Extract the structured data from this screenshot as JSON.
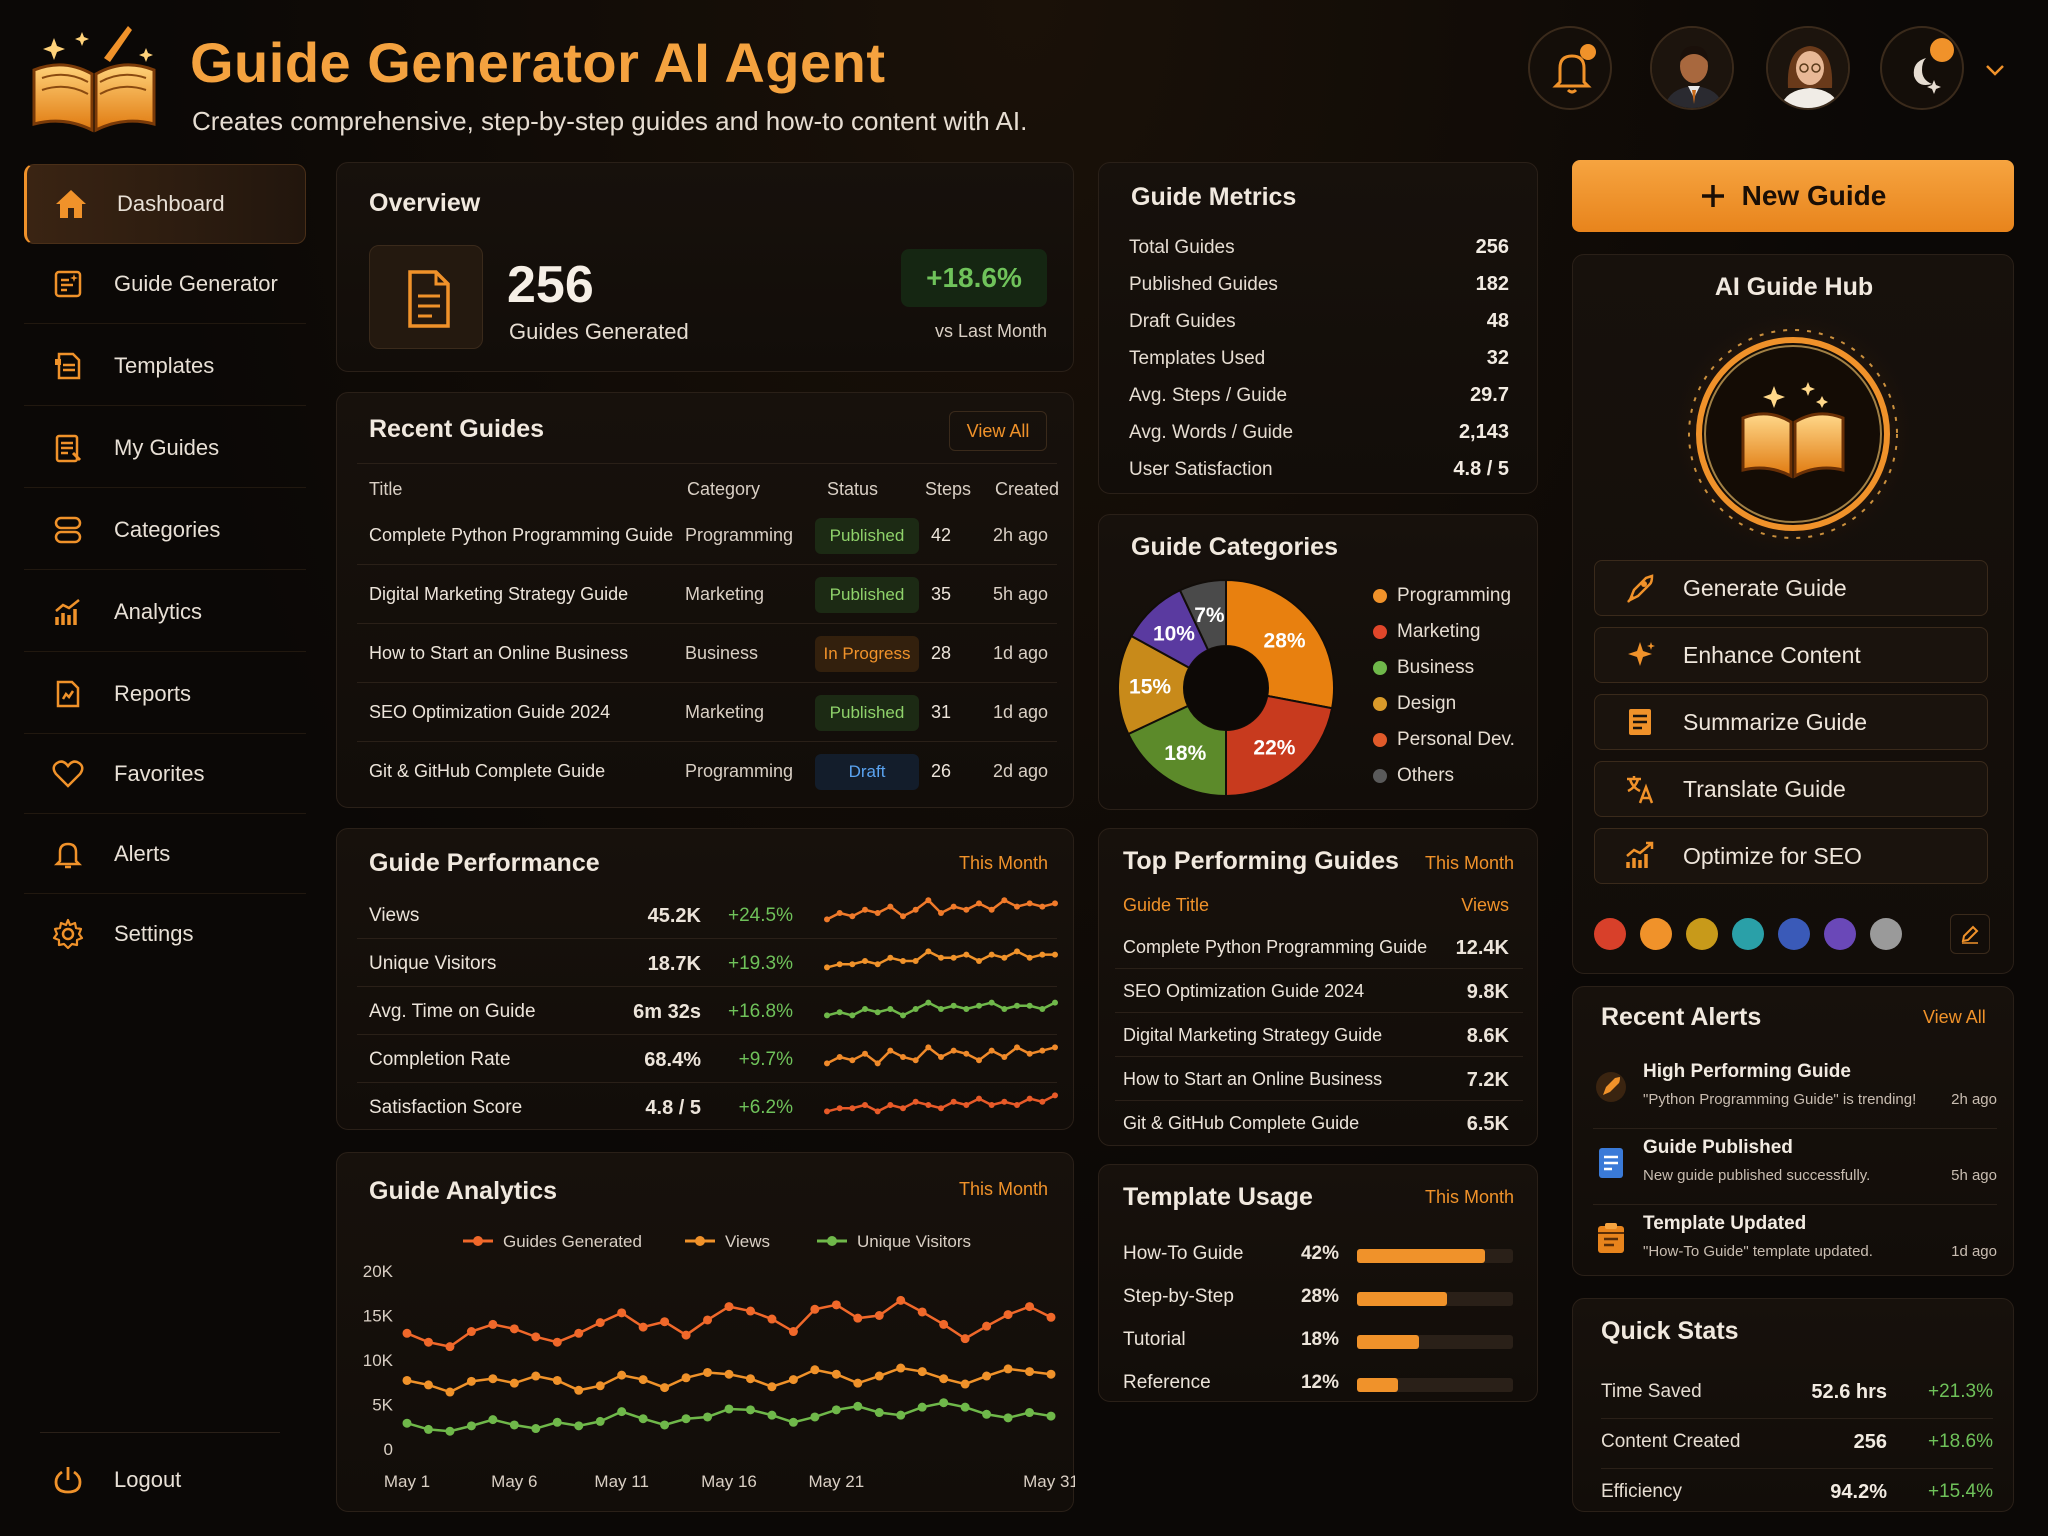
{
  "header": {
    "title": "Guide Generator AI Agent",
    "subtitle": "Creates comprehensive, step-by-step guides and how-to content with AI."
  },
  "sidebar": {
    "items": [
      {
        "label": "Dashboard",
        "icon": "home-icon",
        "active": true
      },
      {
        "label": "Guide Generator",
        "icon": "guide-generator-icon"
      },
      {
        "label": "Templates",
        "icon": "templates-icon"
      },
      {
        "label": "My Guides",
        "icon": "my-guides-icon"
      },
      {
        "label": "Categories",
        "icon": "categories-icon"
      },
      {
        "label": "Analytics",
        "icon": "analytics-icon"
      },
      {
        "label": "Reports",
        "icon": "reports-icon"
      },
      {
        "label": "Favorites",
        "icon": "heart-icon"
      },
      {
        "label": "Alerts",
        "icon": "bell-icon"
      },
      {
        "label": "Settings",
        "icon": "gear-icon"
      }
    ],
    "logout": "Logout"
  },
  "overview": {
    "title": "Overview",
    "value": "256",
    "label": "Guides Generated",
    "change": "+18.6%",
    "change_label": "vs Last Month"
  },
  "recent": {
    "title": "Recent Guides",
    "view_all": "View All",
    "headers": [
      "Title",
      "Category",
      "Status",
      "Steps",
      "Created"
    ],
    "rows": [
      {
        "title": "Complete Python Programming Guide",
        "category": "Programming",
        "status": "Published",
        "steps": "42",
        "created": "2h ago"
      },
      {
        "title": "Digital Marketing Strategy Guide",
        "category": "Marketing",
        "status": "Published",
        "steps": "35",
        "created": "5h ago"
      },
      {
        "title": "How to Start an Online Business",
        "category": "Business",
        "status": "In Progress",
        "steps": "28",
        "created": "1d ago"
      },
      {
        "title": "SEO Optimization Guide 2024",
        "category": "Marketing",
        "status": "Published",
        "steps": "31",
        "created": "1d ago"
      },
      {
        "title": "Git & GitHub Complete Guide",
        "category": "Programming",
        "status": "Draft",
        "steps": "26",
        "created": "2d ago"
      }
    ]
  },
  "performance": {
    "title": "Guide Performance",
    "period": "This Month",
    "rows": [
      {
        "label": "Views",
        "value": "45.2K",
        "change": "+24.5%",
        "color": "#f07a2a",
        "spark": [
          3,
          5,
          4,
          6,
          5,
          7,
          4,
          6,
          9,
          5,
          7,
          6,
          8,
          6,
          9,
          7,
          8,
          7,
          8
        ]
      },
      {
        "label": "Unique Visitors",
        "value": "18.7K",
        "change": "+19.3%",
        "color": "#f0922a",
        "spark": [
          3,
          4,
          4,
          5,
          4,
          6,
          5,
          5,
          8,
          6,
          6,
          7,
          5,
          7,
          6,
          8,
          6,
          7,
          7
        ]
      },
      {
        "label": "Avg. Time on Guide",
        "value": "6m 32s",
        "change": "+16.8%",
        "color": "#6fb84a",
        "spark": [
          3,
          4,
          3,
          5,
          4,
          5,
          3,
          5,
          7,
          5,
          6,
          5,
          6,
          7,
          5,
          6,
          6,
          5,
          7
        ]
      },
      {
        "label": "Completion Rate",
        "value": "68.4%",
        "change": "+9.7%",
        "color": "#f08a2a",
        "spark": [
          3,
          5,
          4,
          6,
          3,
          7,
          5,
          4,
          8,
          5,
          7,
          6,
          4,
          7,
          5,
          8,
          6,
          7,
          8
        ]
      },
      {
        "label": "Satisfaction Score",
        "value": "4.8 / 5",
        "change": "+6.2%",
        "color": "#e85a28",
        "spark": [
          3,
          4,
          4,
          5,
          3,
          5,
          4,
          6,
          5,
          4,
          6,
          5,
          7,
          5,
          6,
          5,
          7,
          6,
          8
        ]
      }
    ]
  },
  "analytics": {
    "title": "Guide Analytics",
    "period": "This Month"
  },
  "chart_data": {
    "type": "line",
    "x": [
      "May 1",
      "May 2",
      "May 3",
      "May 4",
      "May 5",
      "May 6",
      "May 7",
      "May 8",
      "May 9",
      "May 10",
      "May 11",
      "May 12",
      "May 13",
      "May 14",
      "May 15",
      "May 16",
      "May 17",
      "May 18",
      "May 19",
      "May 20",
      "May 21",
      "May 22",
      "May 23",
      "May 24",
      "May 25",
      "May 26",
      "May 27",
      "May 28",
      "May 29",
      "May 30",
      "May 31"
    ],
    "xticks": [
      "May 1",
      "May 6",
      "May 11",
      "May 16",
      "May 21",
      "May 31"
    ],
    "yticks": [
      "0",
      "5K",
      "10K",
      "15K",
      "20K"
    ],
    "ylim": [
      0,
      20000
    ],
    "legend": "top",
    "series": [
      {
        "name": "Guides Generated",
        "color": "#f0682a",
        "values": [
          13000,
          12000,
          11500,
          13200,
          14000,
          13500,
          12600,
          12000,
          13000,
          14200,
          15300,
          13700,
          14300,
          12800,
          14500,
          16000,
          15500,
          14600,
          13200,
          15700,
          16200,
          14700,
          15000,
          16700,
          15400,
          14000,
          12400,
          13800,
          15100,
          16000,
          14800
        ]
      },
      {
        "name": "Views",
        "color": "#f0922a",
        "values": [
          7700,
          7200,
          6400,
          7600,
          7900,
          7400,
          8200,
          7700,
          6600,
          7100,
          8300,
          7800,
          6900,
          8000,
          8600,
          8400,
          7900,
          7000,
          7800,
          8900,
          8400,
          7400,
          8200,
          9100,
          8700,
          7900,
          7300,
          8200,
          9000,
          8700,
          8400
        ]
      },
      {
        "name": "Unique Visitors",
        "color": "#6fb84a",
        "values": [
          2900,
          2200,
          2000,
          2600,
          3300,
          2700,
          2300,
          3000,
          2600,
          3100,
          4200,
          3400,
          2700,
          3400,
          3600,
          4500,
          4400,
          3800,
          3000,
          3600,
          4400,
          4800,
          4100,
          3800,
          4700,
          5200,
          4700,
          3900,
          3500,
          4100,
          3700
        ]
      }
    ]
  },
  "metrics": {
    "title": "Guide Metrics",
    "rows": [
      {
        "label": "Total Guides",
        "value": "256"
      },
      {
        "label": "Published Guides",
        "value": "182"
      },
      {
        "label": "Draft Guides",
        "value": "48"
      },
      {
        "label": "Templates Used",
        "value": "32"
      },
      {
        "label": "Avg. Steps / Guide",
        "value": "29.7"
      },
      {
        "label": "Avg. Words / Guide",
        "value": "2,143"
      },
      {
        "label": "User Satisfaction",
        "value": "4.8 / 5"
      }
    ]
  },
  "categories": {
    "title": "Guide Categories",
    "slices": [
      {
        "name": "Programming",
        "pct": 28,
        "label": "28%",
        "color": "#e8800f"
      },
      {
        "name": "Marketing",
        "pct": 22,
        "label": "22%",
        "color": "#c83a1e"
      },
      {
        "name": "Business",
        "pct": 18,
        "label": "18%",
        "color": "#5c8a2a"
      },
      {
        "name": "Design",
        "pct": 15,
        "label": "15%",
        "color": "#c88a1a"
      },
      {
        "name": "Personal Dev.",
        "pct": 10,
        "label": "10%",
        "color": "#5a3aa0"
      },
      {
        "name": "Others",
        "pct": 7,
        "label": "7%",
        "color": "#4a4a4a"
      }
    ],
    "legend_colors": [
      "#f0922a",
      "#e0462a",
      "#6fb84a",
      "#d99a2a",
      "#e05a2a",
      "#5a5a5a"
    ]
  },
  "top": {
    "title": "Top Performing Guides",
    "period": "This Month",
    "col_title": "Guide Title",
    "col_views": "Views",
    "rows": [
      {
        "title": "Complete Python Programming Guide",
        "views": "12.4K"
      },
      {
        "title": "SEO Optimization Guide 2024",
        "views": "9.8K"
      },
      {
        "title": "Digital Marketing Strategy Guide",
        "views": "8.6K"
      },
      {
        "title": "How to Start an Online Business",
        "views": "7.2K"
      },
      {
        "title": "Git & GitHub Complete Guide",
        "views": "6.5K"
      }
    ]
  },
  "templates": {
    "title": "Template Usage",
    "period": "This Month",
    "rows": [
      {
        "label": "How-To Guide",
        "pct": "42%",
        "fill": 0.82
      },
      {
        "label": "Step-by-Step",
        "pct": "28%",
        "fill": 0.58
      },
      {
        "label": "Tutorial",
        "pct": "18%",
        "fill": 0.4
      },
      {
        "label": "Reference",
        "pct": "12%",
        "fill": 0.26
      }
    ]
  },
  "new_guide": "New Guide",
  "hub": {
    "title": "AI Guide Hub",
    "actions": [
      {
        "label": "Generate Guide",
        "icon": "rocket-icon"
      },
      {
        "label": "Enhance Content",
        "icon": "sparkle-icon"
      },
      {
        "label": "Summarize Guide",
        "icon": "summarize-icon"
      },
      {
        "label": "Translate Guide",
        "icon": "translate-icon"
      },
      {
        "label": "Optimize for SEO",
        "icon": "seo-chart-icon"
      }
    ],
    "swatches": [
      "#d8402a",
      "#f0922a",
      "#c89a1a",
      "#2aa0a8",
      "#3a5ab8",
      "#6a48b8",
      "#9a9a9a"
    ]
  },
  "alerts": {
    "title": "Recent Alerts",
    "view_all": "View All",
    "items": [
      {
        "title": "High Performing Guide",
        "desc": "\"Python Programming Guide\" is trending!",
        "time": "2h ago"
      },
      {
        "title": "Guide Published",
        "desc": "New guide published successfully.",
        "time": "5h ago"
      },
      {
        "title": "Template Updated",
        "desc": "\"How-To Guide\" template updated.",
        "time": "1d ago"
      }
    ]
  },
  "quick": {
    "title": "Quick Stats",
    "rows": [
      {
        "label": "Time Saved",
        "value": "52.6 hrs",
        "change": "+21.3%"
      },
      {
        "label": "Content Created",
        "value": "256",
        "change": "+18.6%"
      },
      {
        "label": "Efficiency",
        "value": "94.2%",
        "change": "+15.4%"
      }
    ]
  }
}
